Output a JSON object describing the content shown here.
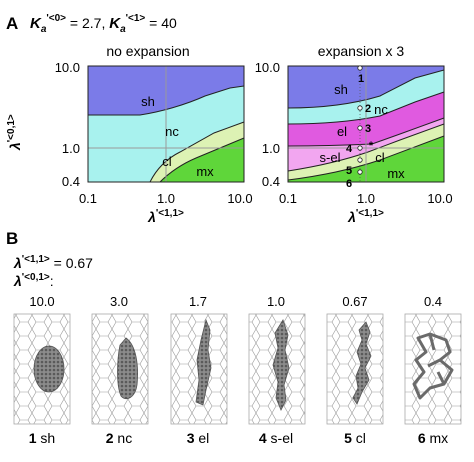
{
  "panel_a": {
    "letter": "A",
    "params": {
      "k0_label": "K",
      "k0_sub": "a",
      "k0_sup": "'<0>",
      "k0_value": " = 2.7, ",
      "k1_label": "K",
      "k1_sub": "a",
      "k1_sup": "'<1>",
      "k1_value": " = 40"
    },
    "left_title": "no expansion",
    "right_title": "expansion x 3",
    "ylabel_main": "λ",
    "ylabel_sup": "'<0,1>",
    "xlabel_main": "λ",
    "xlabel_sup": "'<1,1>",
    "yticks": [
      "10.0",
      "1.0",
      "0.4"
    ],
    "xticks": [
      "0.1",
      "1.0",
      "10.0"
    ],
    "left_regions": [
      "sh",
      "nc",
      "cl",
      "mx"
    ],
    "right_regions": [
      "sh",
      "nc",
      "el",
      "s-el",
      "cl",
      "mx"
    ],
    "points": [
      "1",
      "2",
      "3",
      "4",
      "5",
      "6"
    ],
    "colors": {
      "sh": "#7b7be8",
      "nc": "#a8f2ee",
      "el": "#e05ae0",
      "s-el": "#f2a6f0",
      "cl": "#ddf2b4",
      "mx": "#5fd63a",
      "grid": "#9a9a9a"
    }
  },
  "panel_b": {
    "letter": "B",
    "l11_main": "λ",
    "l11_sup": "'<1,1>",
    "l11_value": " = 0.67",
    "l01_main": "λ",
    "l01_sup": "'<0,1>",
    "l01_value": ":",
    "values": [
      "10.0",
      "3.0",
      "1.7",
      "1.0",
      "0.67",
      "0.4"
    ],
    "labels": [
      {
        "num": "1",
        "name": " sh"
      },
      {
        "num": "2",
        "name": " nc"
      },
      {
        "num": "3",
        "name": " el"
      },
      {
        "num": "4",
        "name": " s-el"
      },
      {
        "num": "5",
        "name": " cl"
      },
      {
        "num": "6",
        "name": " mx"
      }
    ]
  }
}
